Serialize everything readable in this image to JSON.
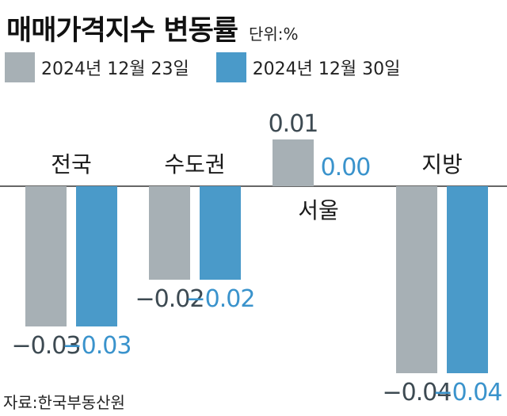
{
  "title": "매매가격지수 변동률",
  "unit": "단위:%",
  "source": "자료:한국부동산원",
  "legend": [
    {
      "label": "2024년 12월 23일",
      "color": "#a7b0b5"
    },
    {
      "label": "2024년 12월 30일",
      "color": "#4a9ac9"
    }
  ],
  "chart_data": {
    "type": "bar",
    "categories": [
      "전국",
      "수도권",
      "서울",
      "지방"
    ],
    "series": [
      {
        "name": "2024년 12월 23일",
        "color": "#a7b0b5",
        "values": [
          -0.03,
          -0.02,
          0.01,
          -0.04
        ],
        "labels": [
          "−0.03",
          "−0.02",
          "0.01",
          "−0.04"
        ],
        "label_color": "#3d4a52"
      },
      {
        "name": "2024년 12월 30일",
        "color": "#4a9ac9",
        "values": [
          -0.03,
          -0.02,
          0.0,
          -0.04
        ],
        "labels": [
          "−0.03",
          "−0.02",
          "0.00",
          "−0.04"
        ],
        "label_color": "#3a93cc"
      }
    ],
    "ylim": [
      -0.04,
      0.01
    ],
    "grid": false,
    "legend_position": "top"
  }
}
